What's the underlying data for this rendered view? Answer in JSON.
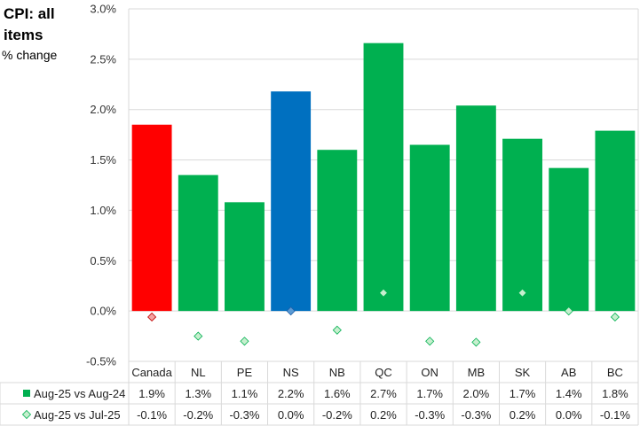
{
  "chart_data": {
    "type": "bar",
    "title": "CPI: all items",
    "ylabel": "% change",
    "ylim": [
      -0.5,
      3.0
    ],
    "yticks": [
      "3.0%",
      "2.5%",
      "2.0%",
      "1.5%",
      "1.0%",
      "0.5%",
      "0.0%",
      "-0.5%"
    ],
    "categories": [
      "Canada",
      "NL",
      "PE",
      "NS",
      "NB",
      "QC",
      "ON",
      "MB",
      "SK",
      "AB",
      "BC"
    ],
    "series": [
      {
        "name": "Aug-25 vs Aug-24",
        "kind": "bar",
        "values": [
          1.85,
          1.35,
          1.08,
          2.18,
          1.6,
          2.66,
          1.65,
          2.04,
          1.71,
          1.42,
          1.79
        ],
        "labels": [
          "1.9%",
          "1.3%",
          "1.1%",
          "2.2%",
          "1.6%",
          "2.7%",
          "1.7%",
          "2.0%",
          "1.7%",
          "1.4%",
          "1.8%"
        ]
      },
      {
        "name": "Aug-25 vs Jul-25",
        "kind": "marker",
        "values": [
          -0.06,
          -0.25,
          -0.3,
          0.0,
          -0.19,
          0.18,
          -0.3,
          -0.31,
          0.18,
          0.0,
          -0.06
        ],
        "labels": [
          "-0.1%",
          "-0.2%",
          "-0.3%",
          "0.0%",
          "-0.2%",
          "0.2%",
          "-0.3%",
          "-0.3%",
          "0.2%",
          "0.0%",
          "-0.1%"
        ]
      }
    ],
    "colors": {
      "bar_default": "#00B050",
      "bar_canada": "#FF0000",
      "bar_ns": "#0070C0",
      "marker_default": "#C6EFCE",
      "marker_default_edge": "#00B050",
      "marker_canada": "#F4A3A3",
      "marker_canada_edge": "#C00000",
      "marker_ns": "#5B9BD5",
      "marker_ns_edge": "#1F5FA8",
      "grid": "#D9D9D9"
    }
  }
}
